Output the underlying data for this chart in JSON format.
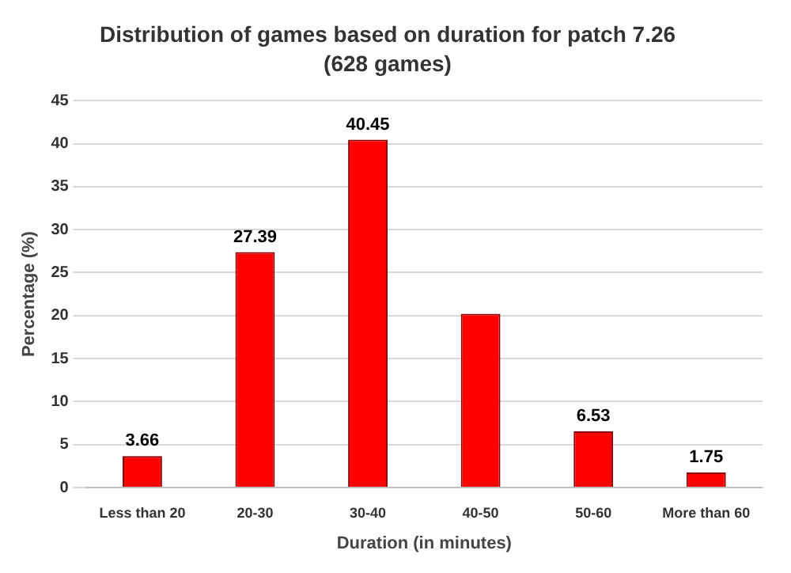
{
  "chart_data": {
    "type": "bar",
    "title": "Distribution of games based on duration for patch 7.26",
    "subtitle": "(628 games)",
    "xlabel": "Duration (in minutes)",
    "ylabel": "Percentage (%)",
    "categories": [
      "Less than 20",
      "20-30",
      "30-40",
      "40-50",
      "50-60",
      "More than 60"
    ],
    "values": [
      3.66,
      27.39,
      40.45,
      20.2,
      6.53,
      1.75
    ],
    "value_labels": [
      "3.66",
      "27.39",
      "40.45",
      null,
      "6.53",
      "1.75"
    ],
    "color": "#ff0000",
    "ylim": [
      0,
      45
    ],
    "yticks": [
      0,
      5,
      10,
      15,
      20,
      25,
      30,
      35,
      40,
      45
    ],
    "grid": "y",
    "legend": false
  }
}
